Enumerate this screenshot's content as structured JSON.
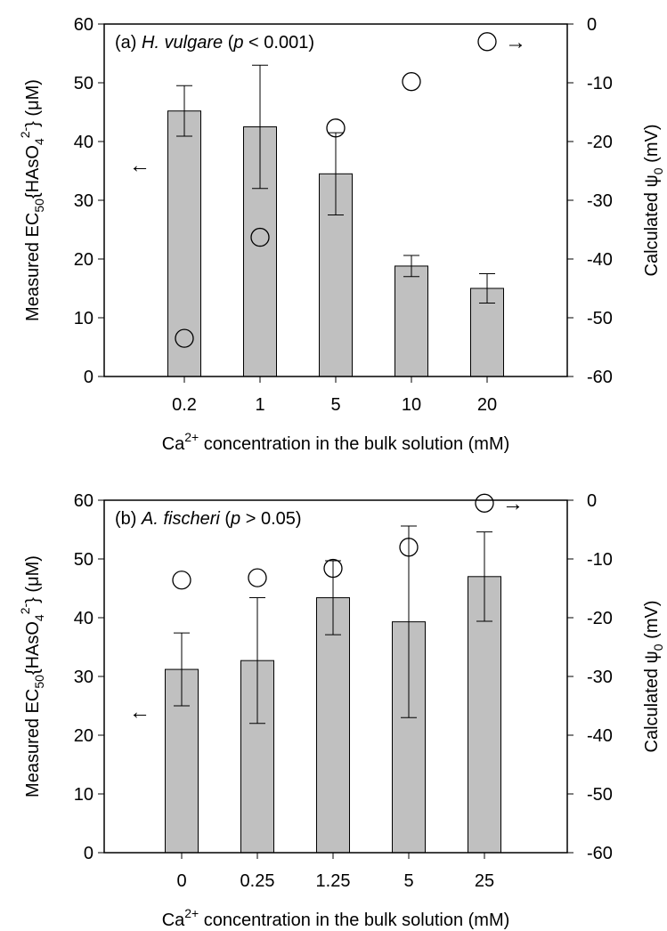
{
  "figure": {
    "colors": {
      "bar_fill": "#c0c0c0",
      "axes": "#000000",
      "marker_face": "#ffffff"
    },
    "legend_symbols": {
      "left_arrow": "←",
      "right_arrow": "→"
    }
  },
  "chart_data": [
    {
      "type": "bar",
      "panel_label_prefix": "(a) ",
      "panel_label_species": "H. vulgare",
      "panel_label_stat_open": " (",
      "panel_label_stat_var": "p",
      "panel_label_stat_rest": " < 0.001)",
      "categories": [
        "0.2",
        "1",
        "5",
        "10",
        "20"
      ],
      "series": [
        {
          "name": "EC50 (left axis)",
          "axis": "left",
          "values": [
            45.2,
            42.5,
            34.5,
            18.8,
            15.0
          ],
          "error": [
            4.3,
            10.5,
            7.0,
            1.8,
            2.5
          ]
        },
        {
          "name": "ψ0 (right axis)",
          "axis": "right",
          "style": "open-circle",
          "values": [
            -53.5,
            -36.3,
            -17.7,
            -9.8,
            -3.0
          ]
        }
      ],
      "arrow_to_left_axis_at": 36.0,
      "arrow_to_right_axis_at": -3.0,
      "ylim": [
        0,
        60
      ],
      "yticks": [
        "0",
        "10",
        "20",
        "30",
        "40",
        "50",
        "60"
      ],
      "y2lim": [
        -60,
        0
      ],
      "y2ticks": [
        "-60",
        "-50",
        "-40",
        "-30",
        "-20",
        "-10",
        "0"
      ],
      "ylabel_pre": "Measured EC",
      "ylabel_sub": "50",
      "ylabel_mid": "{HAsO",
      "ylabel_sub2": "4",
      "ylabel_sup": "2-",
      "ylabel_post": "} (μM)",
      "y2label_pre": "Calculated ψ",
      "y2label_sub": "0",
      "y2label_post": " (mV)",
      "xlabel_pre": "Ca",
      "xlabel_sup": "2+",
      "xlabel_post": " concentration in the bulk solution (mM)",
      "grid": false
    },
    {
      "type": "bar",
      "panel_label_prefix": "(b) ",
      "panel_label_species": "A. fischeri",
      "panel_label_stat_open": " (",
      "panel_label_stat_var": "p",
      "panel_label_stat_rest": " > 0.05)",
      "categories": [
        "0",
        "0.25",
        "1.25",
        "5",
        "25"
      ],
      "series": [
        {
          "name": "EC50 (left axis)",
          "axis": "left",
          "values": [
            31.2,
            32.7,
            43.4,
            39.3,
            47.0
          ],
          "error": [
            6.2,
            10.7,
            6.3,
            16.3,
            7.6
          ]
        },
        {
          "name": "ψ0 (right axis)",
          "axis": "right",
          "style": "open-circle",
          "values": [
            -13.6,
            -13.2,
            -11.6,
            -8.0,
            -0.5
          ]
        }
      ],
      "arrow_to_left_axis_at": 24.0,
      "arrow_to_right_axis_at": -0.5,
      "ylim": [
        0,
        60
      ],
      "yticks": [
        "0",
        "10",
        "20",
        "30",
        "40",
        "50",
        "60"
      ],
      "y2lim": [
        -60,
        0
      ],
      "y2ticks": [
        "-60",
        "-50",
        "-40",
        "-30",
        "-20",
        "-10",
        "0"
      ],
      "ylabel_pre": "Measured EC",
      "ylabel_sub": "50",
      "ylabel_mid": "{HAsO",
      "ylabel_sub2": "4",
      "ylabel_sup": "2-",
      "ylabel_post": "} (μM)",
      "y2label_pre": "Calculated ψ",
      "y2label_sub": "0",
      "y2label_post": " (mV)",
      "xlabel_pre": "Ca",
      "xlabel_sup": "2+",
      "xlabel_post": " concentration in the bulk solution (mM)",
      "grid": false
    }
  ]
}
